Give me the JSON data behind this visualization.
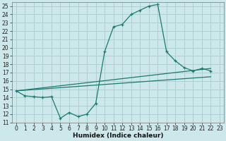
{
  "xlabel": "Humidex (Indice chaleur)",
  "background_color": "#cce8ea",
  "grid_color": "#aacccc",
  "line_color": "#1a7a6e",
  "xlim": [
    -0.5,
    23.5
  ],
  "ylim": [
    11,
    25.5
  ],
  "xticks": [
    0,
    1,
    2,
    3,
    4,
    5,
    6,
    7,
    8,
    9,
    10,
    11,
    12,
    13,
    14,
    15,
    16,
    17,
    18,
    19,
    20,
    21,
    22,
    23
  ],
  "yticks": [
    11,
    12,
    13,
    14,
    15,
    16,
    17,
    18,
    19,
    20,
    21,
    22,
    23,
    24,
    25
  ],
  "main_curve_x": [
    0,
    1,
    2,
    3,
    4,
    5,
    6,
    7,
    8,
    9,
    10,
    11,
    12,
    13,
    14,
    15,
    16,
    17,
    18,
    19,
    20,
    21,
    22
  ],
  "main_curve_y": [
    14.8,
    14.2,
    14.1,
    14.0,
    14.1,
    11.5,
    12.2,
    11.7,
    12.0,
    13.3,
    19.5,
    22.5,
    22.8,
    24.0,
    24.5,
    25.0,
    25.2,
    19.5,
    18.4,
    17.6,
    17.2,
    17.5,
    17.2
  ],
  "line1_x": [
    0,
    22
  ],
  "line1_y": [
    14.8,
    16.5
  ],
  "line2_x": [
    0,
    22
  ],
  "line2_y": [
    14.8,
    17.5
  ],
  "tick_fontsize": 5.5,
  "xlabel_fontsize": 6.5
}
